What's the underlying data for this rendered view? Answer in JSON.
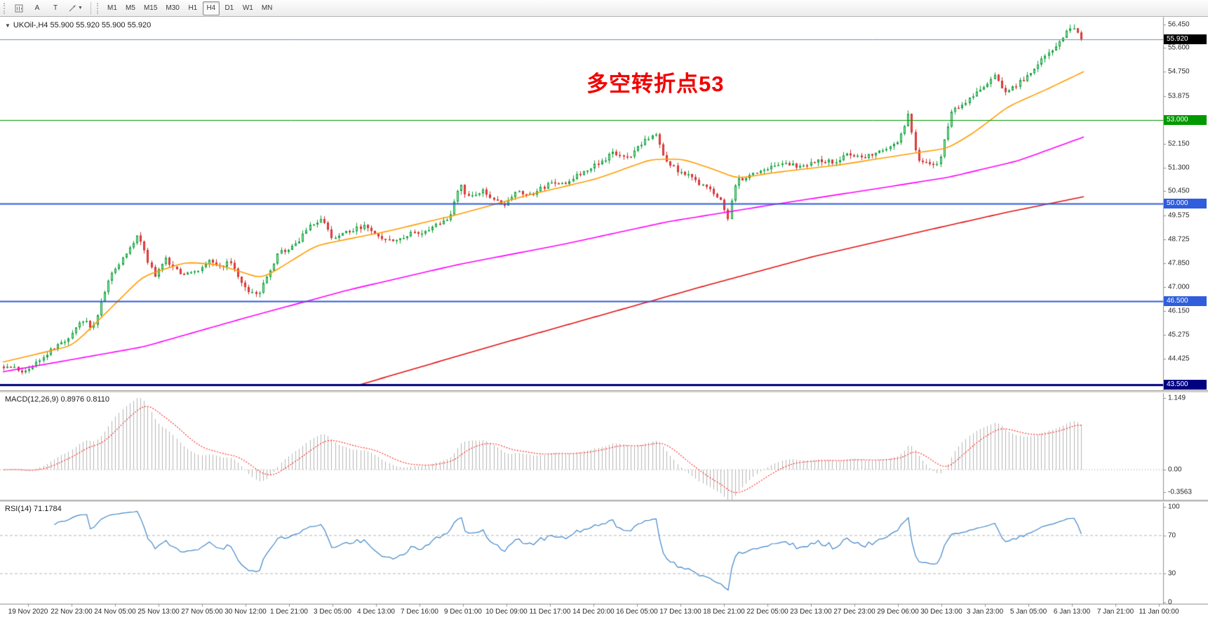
{
  "app": {
    "name": "MetaTrader chart window"
  },
  "toolbar": {
    "tools": [
      {
        "id": "chart-window",
        "label": ""
      },
      {
        "id": "text",
        "label": "A"
      },
      {
        "id": "text-label",
        "label": "T"
      },
      {
        "id": "arrows",
        "label": ""
      }
    ],
    "timeframes": [
      {
        "label": "M1",
        "active": false
      },
      {
        "label": "M5",
        "active": false
      },
      {
        "label": "M15",
        "active": false
      },
      {
        "label": "M30",
        "active": false
      },
      {
        "label": "H1",
        "active": false
      },
      {
        "label": "H4",
        "active": true
      },
      {
        "label": "D1",
        "active": false
      },
      {
        "label": "W1",
        "active": false
      },
      {
        "label": "MN",
        "active": false
      }
    ]
  },
  "chart": {
    "symbol_label": "UKOil-,H4  55.900 55.920 55.900 55.920",
    "current_price": "55.920",
    "annotation": {
      "text": "多空转折点53",
      "color": "#f00000"
    },
    "axis_ticks": [
      "56.450",
      "55.600",
      "54.750",
      "53.875",
      "52.150",
      "51.300",
      "50.450",
      "49.575",
      "48.725",
      "47.850",
      "47.000",
      "46.150",
      "45.275",
      "44.425"
    ],
    "hlines": [
      {
        "price": 55.92,
        "label": "55.920",
        "line_color": "#7191b1",
        "badge_color": "#000000",
        "width": 1
      },
      {
        "price": 53.0,
        "label": "53.000",
        "line_color": "#009900",
        "badge_color": "#009900",
        "width": 1
      },
      {
        "price": 50.0,
        "label": "50.000",
        "line_color": "#2f5ddb",
        "badge_color": "#2f5ddb",
        "width": 2
      },
      {
        "price": 46.5,
        "label": "46.500",
        "line_color": "#2f5ddb",
        "badge_color": "#2f5ddb",
        "width": 2
      },
      {
        "price": 43.5,
        "label": "43.500",
        "line_color": "#000080",
        "badge_color": "#000080",
        "width": 3
      }
    ]
  },
  "macd": {
    "label": "MACD(12,26,9) 0.8976 0.8110",
    "macd_value": 0.8976,
    "signal_value": 0.811,
    "params": [
      12,
      26,
      9
    ],
    "axis": [
      {
        "label": "1.149",
        "value": 1.149
      },
      {
        "label": "0.00",
        "value": 0
      },
      {
        "label": "-0.3563",
        "value": -0.3563
      }
    ]
  },
  "rsi": {
    "label": "RSI(14) 71.1784",
    "value": 71.1784,
    "period": 14,
    "levels": [
      70,
      30
    ],
    "axis": [
      {
        "label": "100",
        "value": 100
      },
      {
        "label": "70",
        "value": 70
      },
      {
        "label": "30",
        "value": 30
      },
      {
        "label": "0",
        "value": 0
      }
    ]
  },
  "time_axis": [
    "19 Nov 2020",
    "22 Nov 23:00",
    "24 Nov 05:00",
    "25 Nov 13:00",
    "27 Nov 05:00",
    "30 Nov 12:00",
    "1 Dec 21:00",
    "3 Dec 05:00",
    "4 Dec 13:00",
    "7 Dec 16:00",
    "9 Dec 01:00",
    "10 Dec 09:00",
    "11 Dec 17:00",
    "14 Dec 20:00",
    "16 Dec 05:00",
    "17 Dec 13:00",
    "18 Dec 21:00",
    "22 Dec 05:00",
    "23 Dec 13:00",
    "27 Dec 23:00",
    "29 Dec 06:00",
    "30 Dec 13:00",
    "3 Jan 23:00",
    "5 Jan 05:00",
    "6 Jan 13:00",
    "7 Jan 21:00",
    "11 Jan 00:00"
  ],
  "chart_data": {
    "type": "candlestick",
    "symbol": "UKOil-",
    "timeframe": "H4",
    "bars": 300,
    "price_range": [
      43.28,
      56.72
    ],
    "last_close": 55.92,
    "high_max": 56.45,
    "close_path": [
      [
        0,
        44.15
      ],
      [
        0.02,
        43.95
      ],
      [
        0.04,
        44.6
      ],
      [
        0.06,
        45.2
      ],
      [
        0.075,
        45.9
      ],
      [
        0.082,
        45.4
      ],
      [
        0.09,
        46.4
      ],
      [
        0.1,
        47.5
      ],
      [
        0.115,
        48.3
      ],
      [
        0.125,
        48.9
      ],
      [
        0.133,
        48.0
      ],
      [
        0.14,
        47.4
      ],
      [
        0.15,
        48.0
      ],
      [
        0.165,
        47.5
      ],
      [
        0.18,
        47.6
      ],
      [
        0.19,
        48.0
      ],
      [
        0.2,
        47.7
      ],
      [
        0.21,
        47.9
      ],
      [
        0.225,
        46.9
      ],
      [
        0.235,
        46.7
      ],
      [
        0.245,
        47.4
      ],
      [
        0.255,
        48.2
      ],
      [
        0.27,
        48.5
      ],
      [
        0.285,
        49.2
      ],
      [
        0.295,
        49.5
      ],
      [
        0.305,
        48.7
      ],
      [
        0.32,
        49.0
      ],
      [
        0.335,
        49.2
      ],
      [
        0.35,
        48.8
      ],
      [
        0.36,
        48.6
      ],
      [
        0.375,
        48.9
      ],
      [
        0.39,
        49.0
      ],
      [
        0.405,
        49.3
      ],
      [
        0.415,
        49.6
      ],
      [
        0.423,
        50.7
      ],
      [
        0.43,
        50.3
      ],
      [
        0.445,
        50.45
      ],
      [
        0.46,
        50.05
      ],
      [
        0.465,
        49.95
      ],
      [
        0.475,
        50.5
      ],
      [
        0.49,
        50.3
      ],
      [
        0.505,
        50.7
      ],
      [
        0.52,
        50.7
      ],
      [
        0.535,
        51.1
      ],
      [
        0.55,
        51.4
      ],
      [
        0.565,
        51.8
      ],
      [
        0.58,
        51.6
      ],
      [
        0.595,
        52.3
      ],
      [
        0.605,
        52.55
      ],
      [
        0.612,
        51.7
      ],
      [
        0.625,
        51.2
      ],
      [
        0.64,
        50.9
      ],
      [
        0.655,
        50.5
      ],
      [
        0.665,
        50.2
      ],
      [
        0.672,
        49.45
      ],
      [
        0.68,
        50.8
      ],
      [
        0.695,
        51.1
      ],
      [
        0.71,
        51.3
      ],
      [
        0.725,
        51.5
      ],
      [
        0.74,
        51.3
      ],
      [
        0.755,
        51.6
      ],
      [
        0.77,
        51.5
      ],
      [
        0.785,
        51.8
      ],
      [
        0.8,
        51.7
      ],
      [
        0.815,
        51.9
      ],
      [
        0.83,
        52.2
      ],
      [
        0.84,
        53.2
      ],
      [
        0.848,
        51.6
      ],
      [
        0.858,
        51.4
      ],
      [
        0.868,
        51.5
      ],
      [
        0.88,
        53.3
      ],
      [
        0.89,
        53.6
      ],
      [
        0.9,
        53.9
      ],
      [
        0.912,
        54.3
      ],
      [
        0.92,
        54.7
      ],
      [
        0.928,
        54.0
      ],
      [
        0.938,
        54.2
      ],
      [
        0.95,
        54.6
      ],
      [
        0.962,
        55.1
      ],
      [
        0.975,
        55.6
      ],
      [
        0.985,
        56.1
      ],
      [
        0.993,
        56.3
      ],
      [
        1,
        55.92
      ]
    ],
    "up_color": "#0fa03c",
    "up_fill": "#aceebb",
    "down_color": "#d22f2f",
    "down_fill": "#f14c4c",
    "moving_averages": [
      {
        "name": "ma-fast",
        "color": "#ff9d00",
        "path": [
          [
            0,
            44.3
          ],
          [
            0.065,
            44.9
          ],
          [
            0.13,
            47.4
          ],
          [
            0.17,
            47.9
          ],
          [
            0.2,
            47.8
          ],
          [
            0.24,
            47.3
          ],
          [
            0.29,
            48.5
          ],
          [
            0.355,
            49.0
          ],
          [
            0.42,
            49.6
          ],
          [
            0.485,
            50.3
          ],
          [
            0.55,
            50.9
          ],
          [
            0.6,
            51.6
          ],
          [
            0.63,
            51.6
          ],
          [
            0.66,
            51.2
          ],
          [
            0.68,
            50.9
          ],
          [
            0.71,
            51.1
          ],
          [
            0.775,
            51.4
          ],
          [
            0.84,
            51.8
          ],
          [
            0.875,
            52.0
          ],
          [
            0.9,
            52.6
          ],
          [
            0.93,
            53.5
          ],
          [
            0.965,
            54.1
          ],
          [
            1,
            54.75
          ]
        ]
      },
      {
        "name": "ma-medium",
        "color": "#ff00ff",
        "path": [
          [
            0,
            43.95
          ],
          [
            0.13,
            44.85
          ],
          [
            0.225,
            45.9
          ],
          [
            0.32,
            46.9
          ],
          [
            0.42,
            47.8
          ],
          [
            0.52,
            48.55
          ],
          [
            0.615,
            49.35
          ],
          [
            0.71,
            49.95
          ],
          [
            0.81,
            50.55
          ],
          [
            0.875,
            50.95
          ],
          [
            0.94,
            51.55
          ],
          [
            1,
            52.4
          ]
        ]
      },
      {
        "name": "ma-slow",
        "color": "#e31212",
        "path": [
          [
            0.327,
            43.45
          ],
          [
            0.45,
            44.85
          ],
          [
            0.55,
            45.95
          ],
          [
            0.65,
            47.05
          ],
          [
            0.75,
            48.1
          ],
          [
            0.85,
            49.0
          ],
          [
            0.93,
            49.7
          ],
          [
            1,
            50.25
          ]
        ]
      }
    ],
    "macd_hist_color": "#b5b5b5",
    "macd_signal_color": "#ff3333",
    "rsi_color": "#3f86c9"
  }
}
